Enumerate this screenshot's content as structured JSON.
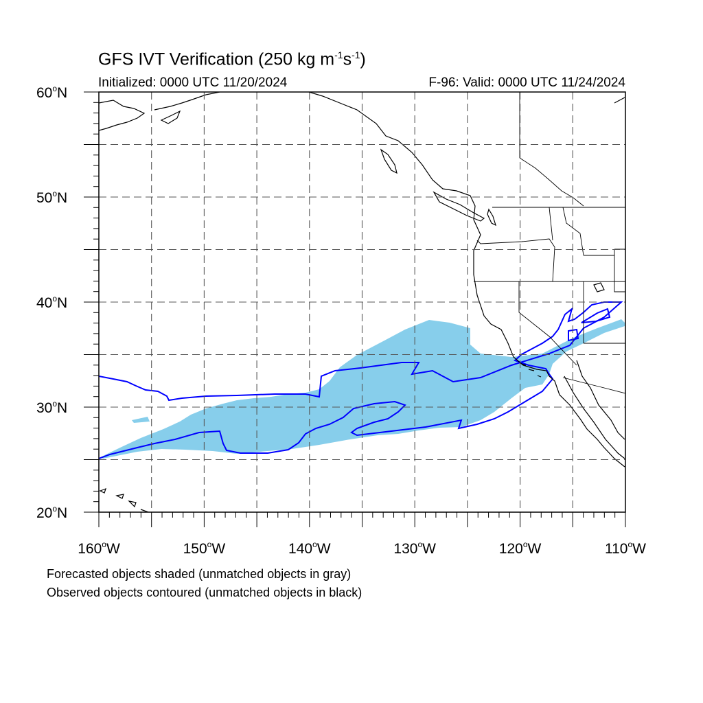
{
  "title": {
    "main": "GFS IVT Verification (250 kg m",
    "sup1": "-1",
    "mid": "s",
    "sup2": "-1",
    "end": ")"
  },
  "subtitle": {
    "initialized": "Initialized: 0000 UTC 11/20/2024",
    "valid": "F-96: Valid: 0000 UTC 11/24/2024"
  },
  "map": {
    "lon_range": [
      -160,
      -110
    ],
    "lat_range": [
      20,
      60
    ],
    "lat_labels": [
      {
        "value": 60,
        "num": "60",
        "hemi": "N"
      },
      {
        "value": 50,
        "num": "50",
        "hemi": "N"
      },
      {
        "value": 40,
        "num": "40",
        "hemi": "N"
      },
      {
        "value": 30,
        "num": "30",
        "hemi": "N"
      },
      {
        "value": 20,
        "num": "20",
        "hemi": "N"
      }
    ],
    "lon_labels": [
      {
        "value": -160,
        "num": "160",
        "hemi": "W"
      },
      {
        "value": -150,
        "num": "150",
        "hemi": "W"
      },
      {
        "value": -140,
        "num": "140",
        "hemi": "W"
      },
      {
        "value": -130,
        "num": "130",
        "hemi": "W"
      },
      {
        "value": -120,
        "num": "120",
        "hemi": "W"
      },
      {
        "value": -110,
        "num": "110",
        "hemi": "W"
      }
    ],
    "gridline_interval_deg": 5,
    "colors": {
      "forecast_fill": "#87ceeb",
      "observed_contour": "#0000ff",
      "coastline": "#000000",
      "gridline": "#555555"
    }
  },
  "notes": {
    "line1": "Forecasted objects shaded (unmatched objects in gray)",
    "line2": "Observed objects contoured (unmatched objects in black)"
  }
}
